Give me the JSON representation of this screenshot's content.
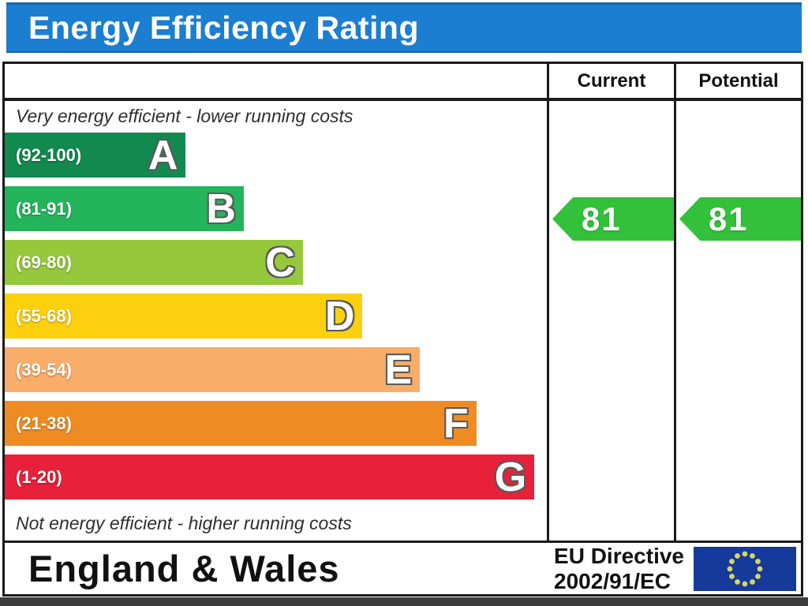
{
  "title": "Energy Efficiency Rating",
  "columns": {
    "current": "Current",
    "potential": "Potential"
  },
  "notes": {
    "top": "Very energy efficient - lower running costs",
    "bottom": "Not energy efficient - higher running costs"
  },
  "bands": [
    {
      "letter": "A",
      "range": "(92-100)",
      "color": "#11894f",
      "width_pct": 33.4
    },
    {
      "letter": "B",
      "range": "(81-91)",
      "color": "#24b45c",
      "width_pct": 44.1
    },
    {
      "letter": "C",
      "range": "(69-80)",
      "color": "#96c83c",
      "width_pct": 55.0
    },
    {
      "letter": "D",
      "range": "(55-68)",
      "color": "#fcd00e",
      "width_pct": 66.0
    },
    {
      "letter": "E",
      "range": "(39-54)",
      "color": "#f8ad69",
      "width_pct": 76.6
    },
    {
      "letter": "F",
      "range": "(21-38)",
      "color": "#ee8c23",
      "width_pct": 87.0
    },
    {
      "letter": "G",
      "range": "(1-20)",
      "color": "#e82039",
      "width_pct": 97.7
    }
  ],
  "current": {
    "value": "81",
    "color": "#33c13c"
  },
  "potential": {
    "value": "81",
    "color": "#33c13c"
  },
  "footer": {
    "region": "England & Wales",
    "directive_line1": "EU Directive",
    "directive_line2": "2002/91/EC"
  },
  "colors": {
    "title_bg": "#1b7ed1",
    "title_text": "#ffffff",
    "border": "#1b1b1b",
    "flag_bg": "#16399c",
    "flag_stars": "#d4d862",
    "bottom_band": "#3c3c3c"
  },
  "chart_data": {
    "type": "bar",
    "title": "Energy Efficiency Rating",
    "categories": [
      "A",
      "B",
      "C",
      "D",
      "E",
      "F",
      "G"
    ],
    "band_ranges": [
      "92-100",
      "81-91",
      "69-80",
      "55-68",
      "39-54",
      "21-38",
      "1-20"
    ],
    "band_colors": [
      "#11894f",
      "#24b45c",
      "#96c83c",
      "#fcd00e",
      "#f8ad69",
      "#ee8c23",
      "#e82039"
    ],
    "bar_widths_pct": [
      33.4,
      44.1,
      55.0,
      66.0,
      76.6,
      87.0,
      97.7
    ],
    "scale_range": [
      1,
      100
    ],
    "series": [
      {
        "name": "Current",
        "value": 81,
        "band": "B"
      },
      {
        "name": "Potential",
        "value": 81,
        "band": "B"
      }
    ],
    "annotations": [
      "Very energy efficient - lower running costs",
      "Not energy efficient - higher running costs"
    ],
    "region": "England & Wales",
    "directive": "EU Directive 2002/91/EC",
    "legend_position": "none",
    "grid": false
  }
}
